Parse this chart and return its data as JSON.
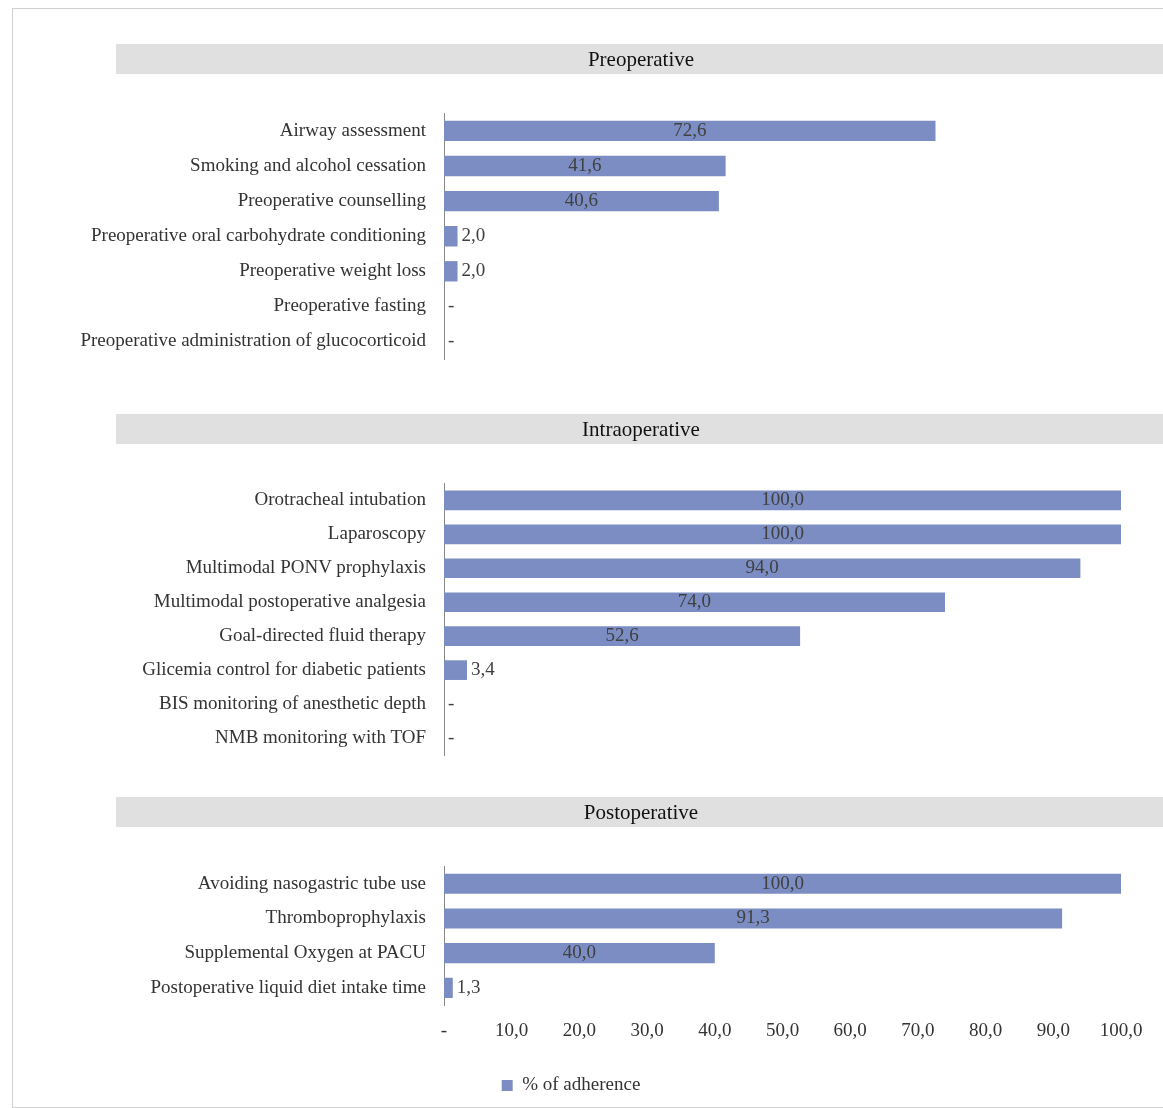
{
  "chart_data": [
    {
      "type": "bar",
      "orientation": "horizontal",
      "title": "Preoperative",
      "categories": [
        "Airway assessment",
        "Smoking and alcohol cessation",
        "Preoperative counselling",
        "Preoperative oral carbohydrate conditioning",
        "Preoperative weight loss",
        "Preoperative fasting",
        "Preoperative administration of glucocorticoid"
      ],
      "series": [
        {
          "color": "#7b8dc2",
          "values": [
            72.6,
            41.6,
            40.6,
            2.0,
            2.0,
            0,
            0
          ],
          "value_labels": [
            "72,6",
            "41,6",
            "40,6",
            "2,0",
            "2,0",
            "-",
            "-"
          ]
        }
      ],
      "xlim": [
        0,
        100
      ],
      "tick_labels": "y",
      "legend": false
    },
    {
      "type": "bar",
      "orientation": "horizontal",
      "title": "Intraoperative",
      "categories": [
        "Orotracheal intubation",
        "Laparoscopy",
        "Multimodal PONV prophylaxis",
        "Multimodal postoperative analgesia",
        "Goal-directed fluid therapy",
        "Glicemia control for diabetic patients",
        "BIS monitoring of anesthetic depth",
        "NMB monitoring with TOF"
      ],
      "series": [
        {
          "color": "#7b8dc2",
          "values": [
            100,
            100,
            94.0,
            74.0,
            52.6,
            3.4,
            0,
            0
          ],
          "value_labels": [
            "100,0",
            "100,0",
            "94,0",
            "74,0",
            "52,6",
            "3,4",
            "-",
            "-"
          ]
        }
      ],
      "xlim": [
        0,
        100
      ],
      "tick_labels": "y",
      "legend": false
    },
    {
      "type": "bar",
      "orientation": "horizontal",
      "title": "Postoperative",
      "categories": [
        "Avoiding nasogastric tube use",
        "Thromboprophylaxis",
        "Supplemental Oxygen at PACU",
        "Postoperative liquid diet intake time"
      ],
      "series": [
        {
          "name": "% of adherence",
          "color": "#7b8dc2",
          "values": [
            100,
            91.3,
            40.0,
            1.3
          ],
          "value_labels": [
            "100,0",
            "91,3",
            "40,0",
            "1,3"
          ]
        }
      ],
      "xlim": [
        0,
        100
      ],
      "xticks": [
        {
          "value": 0,
          "label": "-"
        },
        {
          "value": 10,
          "label": "10,0"
        },
        {
          "value": 20,
          "label": "20,0"
        },
        {
          "value": 30,
          "label": "30,0"
        },
        {
          "value": 40,
          "label": "40,0"
        },
        {
          "value": 50,
          "label": "50,0"
        },
        {
          "value": 60,
          "label": "60,0"
        },
        {
          "value": 70,
          "label": "70,0"
        },
        {
          "value": 80,
          "label": "80,0"
        },
        {
          "value": 90,
          "label": "90,0"
        },
        {
          "value": 100,
          "label": "100,0"
        }
      ],
      "legend": "bottom"
    }
  ]
}
